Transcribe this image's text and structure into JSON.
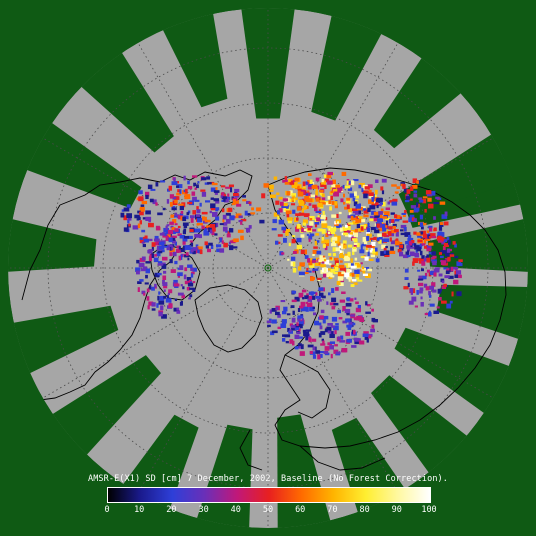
{
  "map": {
    "projection": "north-polar-stereographic",
    "background_color": "#0f5a14",
    "swath_gap_color": "#a6a6a6",
    "graticule_color": "#4a4a4a",
    "coastline_color": "#000000",
    "pole_marker": "north-pole"
  },
  "caption": "AMSR-E(X1) SD [cm] 7 December, 2002, Baseline (No Forest Correction).",
  "legend": {
    "min": 0,
    "max": 100,
    "colors": [
      "#000000",
      "#1a1a8c",
      "#2e3fd8",
      "#6a2fb8",
      "#c0187a",
      "#e82020",
      "#ff6a00",
      "#ffb400",
      "#ffee30",
      "#fff8a0",
      "#ffffff"
    ],
    "ticks": [
      "0",
      "10",
      "20",
      "30",
      "40",
      "50",
      "60",
      "70",
      "80",
      "90",
      "100"
    ]
  },
  "chart_data": {
    "type": "heatmap",
    "title": "AMSR-E(X1) SD [cm] 7 December, 2002, Baseline (No Forest Correction).",
    "colorbar_range": [
      0,
      100
    ],
    "colorbar_ticks": [
      0,
      10,
      20,
      30,
      40,
      50,
      60,
      70,
      80,
      90,
      100
    ]
  }
}
